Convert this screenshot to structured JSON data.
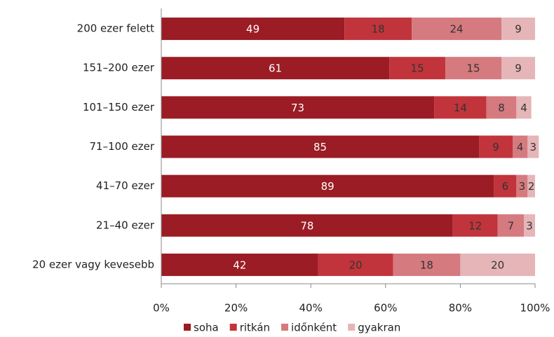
{
  "chart_data": {
    "type": "stacked_barh",
    "categories": [
      "200 ezer felett",
      "151–200 ezer",
      "101–150 ezer",
      "71–100 ezer",
      "41–70 ezer",
      "21–40 ezer",
      "20 ezer vagy kevesebb"
    ],
    "series": [
      {
        "name": "soha",
        "color": "#9b1c24",
        "values": [
          49,
          61,
          73,
          85,
          89,
          78,
          42
        ]
      },
      {
        "name": "ritkán",
        "color": "#c1343b",
        "values": [
          18,
          15,
          14,
          9,
          6,
          12,
          20
        ]
      },
      {
        "name": "időnként",
        "color": "#d57a7f",
        "values": [
          24,
          15,
          8,
          4,
          3,
          7,
          18
        ]
      },
      {
        "name": "gyakran",
        "color": "#e5b5b8",
        "values": [
          9,
          9,
          4,
          3,
          2,
          3,
          20
        ]
      }
    ],
    "xlim": [
      0,
      100
    ],
    "xticks": [
      {
        "value": 0,
        "label": "0%"
      },
      {
        "value": 20,
        "label": "20%"
      },
      {
        "value": 40,
        "label": "40%"
      },
      {
        "value": 60,
        "label": "60%"
      },
      {
        "value": 80,
        "label": "80%"
      },
      {
        "value": 100,
        "label": "100%"
      }
    ]
  }
}
